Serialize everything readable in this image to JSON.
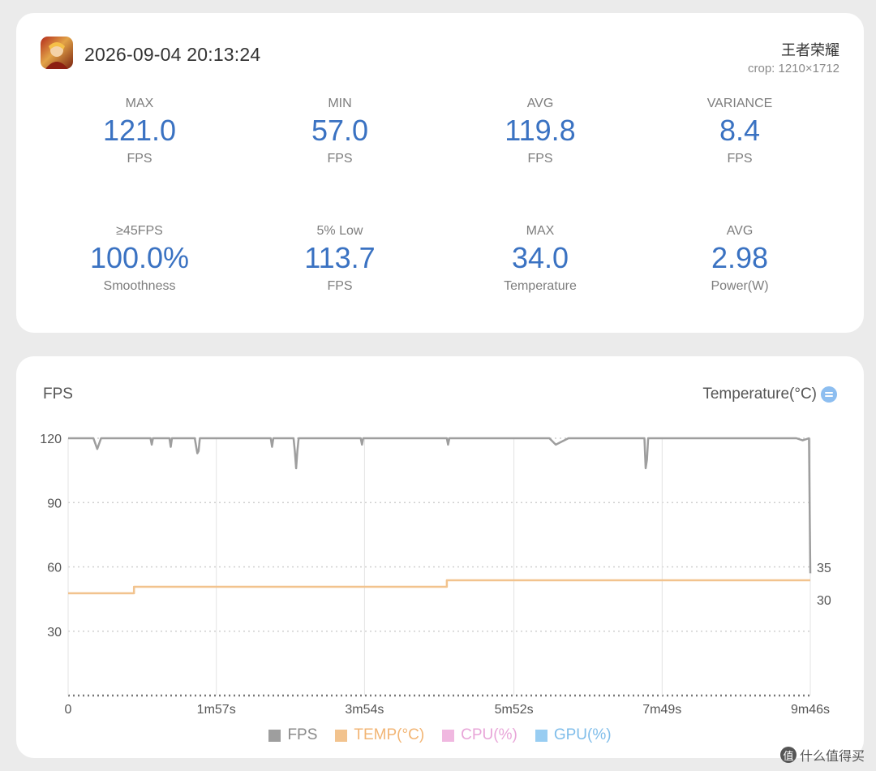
{
  "summary": {
    "timestamp": "2026-09-04 20:13:24",
    "game_name": "王者荣耀",
    "crop": "crop: 1210×1712",
    "stats": [
      {
        "label": "MAX",
        "value": "121.0",
        "unit": "FPS"
      },
      {
        "label": "MIN",
        "value": "57.0",
        "unit": "FPS"
      },
      {
        "label": "AVG",
        "value": "119.8",
        "unit": "FPS"
      },
      {
        "label": "VARIANCE",
        "value": "8.4",
        "unit": "FPS"
      },
      {
        "label": "≥45FPS",
        "value": "100.0%",
        "unit": "Smoothness"
      },
      {
        "label": "5% Low",
        "value": "113.7",
        "unit": "FPS"
      },
      {
        "label": "MAX",
        "value": "34.0",
        "unit": "Temperature"
      },
      {
        "label": "AVG",
        "value": "2.98",
        "unit": "Power(W)"
      }
    ]
  },
  "chart": {
    "left_title": "FPS",
    "right_title": "Temperature(°C)",
    "legend": [
      {
        "name": "FPS",
        "color": "#9e9e9e",
        "text_color": "#8a8a8a"
      },
      {
        "name": "TEMP(°C)",
        "color": "#f2c38e",
        "text_color": "#f2b574"
      },
      {
        "name": "CPU(%)",
        "color": "#f0b8e0",
        "text_color": "#e8a5d8"
      },
      {
        "name": "GPU(%)",
        "color": "#98cdf2",
        "text_color": "#7fbdea"
      }
    ]
  },
  "chart_data": {
    "type": "line",
    "x_tick_labels": [
      "0",
      "1m57s",
      "3m54s",
      "5m52s",
      "7m49s",
      "9m46s"
    ],
    "x_ticks_seconds": [
      0,
      117,
      234,
      352,
      469,
      586
    ],
    "y_left_ticks": [
      "120",
      "90",
      "60",
      "30"
    ],
    "y_left_range": [
      0,
      120
    ],
    "y_right_ticks": [
      "35",
      "30"
    ],
    "y_right_unit": "°C",
    "grid": true,
    "series": [
      {
        "name": "FPS",
        "color": "#9e9e9e",
        "x": [
          0,
          5,
          10,
          20,
          23,
          26,
          30,
          45,
          60,
          65,
          66,
          67,
          70,
          80,
          81,
          82,
          90,
          95,
          100,
          102,
          103,
          104,
          110,
          120,
          150,
          160,
          161,
          162,
          170,
          178,
          179,
          180,
          181,
          182,
          190,
          200,
          215,
          231,
          232,
          233,
          240,
          250,
          280,
          299,
          300,
          301,
          320,
          330,
          360,
          380,
          385,
          395,
          420,
          440,
          455,
          456,
          457,
          458,
          460,
          470,
          500,
          520,
          560,
          575,
          580,
          585,
          586
        ],
        "y": [
          120,
          120,
          120,
          120,
          115,
          120,
          120,
          120,
          120,
          120,
          117,
          120,
          120,
          120,
          116,
          120,
          120,
          120,
          120,
          113,
          114,
          120,
          120,
          120,
          120,
          120,
          116,
          120,
          120,
          120,
          114,
          106,
          114,
          120,
          120,
          120,
          120,
          120,
          117,
          120,
          120,
          120,
          120,
          120,
          117,
          120,
          120,
          120,
          120,
          120,
          117,
          120,
          120,
          120,
          120,
          106,
          110,
          120,
          120,
          120,
          120,
          120,
          120,
          120,
          119,
          120,
          57
        ]
      },
      {
        "name": "TEMP(°C)",
        "color": "#f2c38e",
        "x": [
          0,
          52,
          52,
          299,
          299,
          586
        ],
        "y": [
          31,
          31,
          32,
          32,
          33,
          33
        ]
      }
    ]
  }
}
